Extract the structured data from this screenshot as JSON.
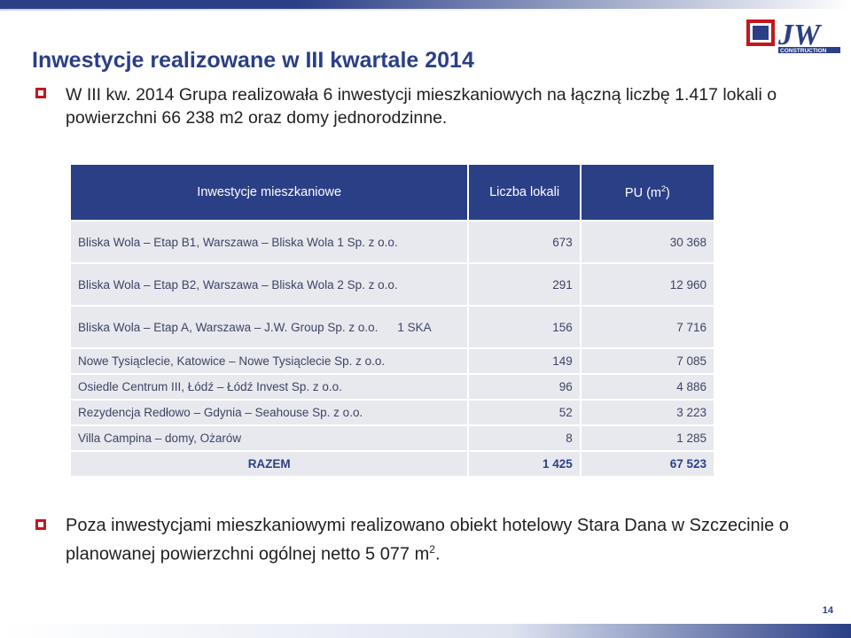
{
  "header": {
    "title": "Inwestycje realizowane w III kwartale 2014",
    "logo_text": "JW",
    "logo_subtext": "CONSTRUCTION"
  },
  "intro": {
    "text": "W III kw. 2014 Grupa realizowała 6 inwestycji mieszkaniowych na łączną liczbę  1.417 lokali o powierzchni 66 238 m2 oraz domy jednorodzinne."
  },
  "table": {
    "headers": [
      "Inwestycje mieszkaniowe",
      "Liczba lokali",
      "PU (m",
      "2",
      ")"
    ],
    "rows": [
      {
        "name": "Bliska Wola – Etap B1, Warszawa – Bliska Wola 1 Sp. z o.o.",
        "extra": "",
        "count": "673",
        "area": "30 368",
        "size": "tall"
      },
      {
        "name": "Bliska Wola – Etap B2, Warszawa – Bliska Wola 2 Sp. z o.o.",
        "extra": "",
        "count": "291",
        "area": "12 960",
        "size": "tall"
      },
      {
        "name": "Bliska Wola – Etap A, Warszawa – J.W. Group Sp. z o.o.",
        "extra": "1 SKA",
        "count": "156",
        "area": "7 716",
        "size": "tall"
      },
      {
        "name": "Nowe Tysiąclecie, Katowice – Nowe Tysiąclecie Sp. z o.o.",
        "extra": "",
        "count": "149",
        "area": "7 085",
        "size": "short"
      },
      {
        "name": "Osiedle Centrum III, Łódź – Łódź Invest Sp. z o.o.",
        "extra": "",
        "count": "96",
        "area": "4 886",
        "size": "short"
      },
      {
        "name": "Rezydencja Redłowo – Gdynia – Seahouse Sp. z o.o.",
        "extra": "",
        "count": "52",
        "area": "3 223",
        "size": "short"
      },
      {
        "name": "Villa Campina – domy, Ożarów",
        "extra": "",
        "count": "8",
        "area": "1 285",
        "size": "short"
      }
    ],
    "total": {
      "label": "RAZEM",
      "count": "1 425",
      "area": "67 523"
    }
  },
  "note": {
    "text": "Poza inwestycjami mieszkaniowymi realizowano obiekt hotelowy Stara Dana w Szczecinie o planowanej powierzchni ogólnej netto  5 077 m",
    "sup": "2",
    "end": "."
  },
  "footer": {
    "page_number": "14"
  },
  "colors": {
    "brand_blue": "#2b3f87",
    "bullet_red": "#c4161c",
    "cell_gray": "#e8e9ee"
  }
}
